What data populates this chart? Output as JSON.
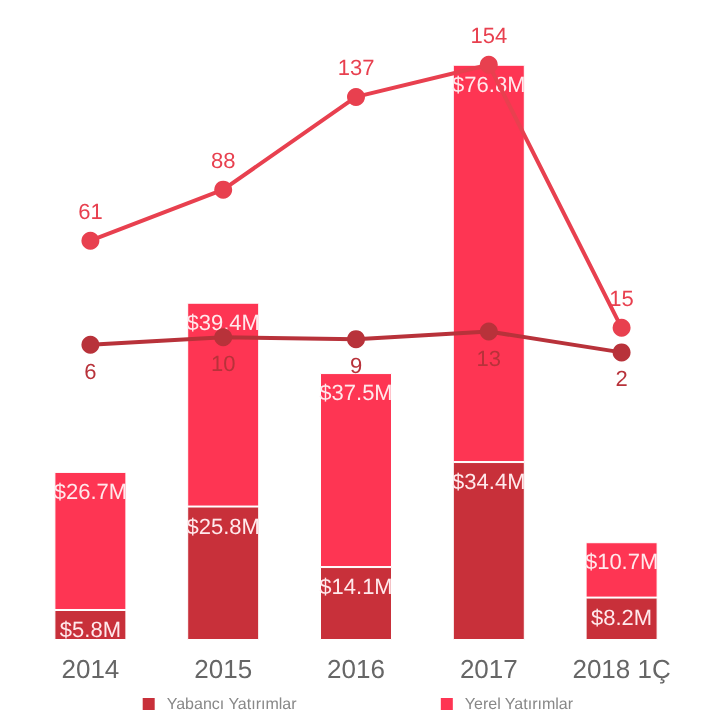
{
  "chart_data": {
    "type": "bar",
    "stacked": true,
    "categories": [
      "2014",
      "2015",
      "2016",
      "2017",
      "2018 1Ç"
    ],
    "legend": "bottom",
    "grid": false,
    "series": [
      {
        "name": "Yabancı Yatırımlar",
        "color": "#c8303a",
        "values": [
          5.8,
          25.8,
          14.1,
          34.4,
          8.2
        ],
        "value_labels": [
          "$5.8M",
          "$25.8M",
          "$14.1M",
          "$34.4M",
          "$8.2M"
        ]
      },
      {
        "name": "Yerel Yatırımlar",
        "color": "#fe3553",
        "values": [
          26.7,
          39.4,
          37.5,
          76.8,
          10.7
        ],
        "value_labels": [
          "$26.7M",
          "$39.4M",
          "$37.5M",
          "$76.8M",
          "$10.7M"
        ]
      },
      {
        "type": "line",
        "axis": "y2",
        "color": "#b8323a",
        "marker": "circle",
        "values": [
          6,
          10,
          9,
          13,
          2
        ],
        "data_labels": true
      },
      {
        "type": "line",
        "axis": "y2",
        "color": "#e8404f",
        "marker": "circle",
        "values": [
          61,
          88,
          137,
          154,
          15
        ],
        "data_labels": true
      }
    ]
  }
}
